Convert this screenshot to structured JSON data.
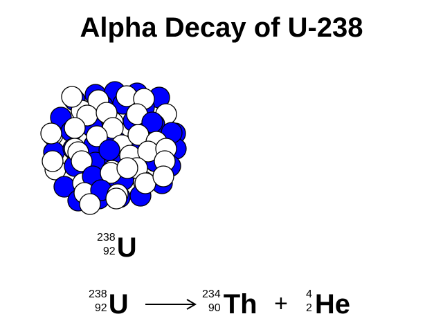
{
  "title": "Alpha Decay of U-238",
  "nucleus": {
    "colors": {
      "proton": "#0000ff",
      "neutron": "#ffffff",
      "outline": "#000000"
    }
  },
  "label": {
    "mass": "238",
    "atomic": "92",
    "symbol": "U"
  },
  "equation": {
    "reactant": {
      "mass": "238",
      "atomic": "92",
      "symbol": "U"
    },
    "arrow": "arrow-right-icon",
    "products": [
      {
        "mass": "234",
        "atomic": "90",
        "symbol": "Th"
      },
      {
        "mass": "4",
        "atomic": "2",
        "symbol": "He"
      }
    ],
    "plus": "+"
  }
}
